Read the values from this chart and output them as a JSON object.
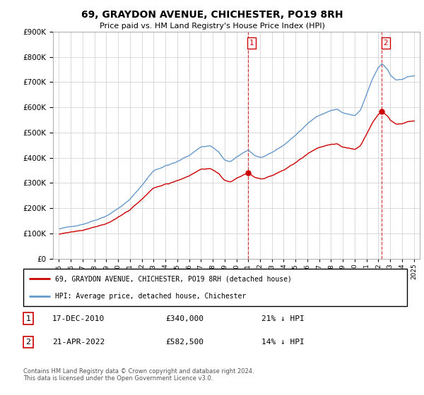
{
  "title": "69, GRAYDON AVENUE, CHICHESTER, PO19 8RH",
  "subtitle": "Price paid vs. HM Land Registry's House Price Index (HPI)",
  "sale1_date": "17-DEC-2010",
  "sale1_price": 340000,
  "sale1_label": "21% ↓ HPI",
  "sale2_date": "21-APR-2022",
  "sale2_price": 582500,
  "sale2_label": "14% ↓ HPI",
  "legend_line1": "69, GRAYDON AVENUE, CHICHESTER, PO19 8RH (detached house)",
  "legend_line2": "HPI: Average price, detached house, Chichester",
  "footer": "Contains HM Land Registry data © Crown copyright and database right 2024.\nThis data is licensed under the Open Government Licence v3.0.",
  "hpi_color": "#6699cc",
  "price_color": "#cc0000",
  "ylim_min": 0,
  "ylim_max": 900000,
  "xlim_min": 1994.5,
  "xlim_max": 2025.5
}
